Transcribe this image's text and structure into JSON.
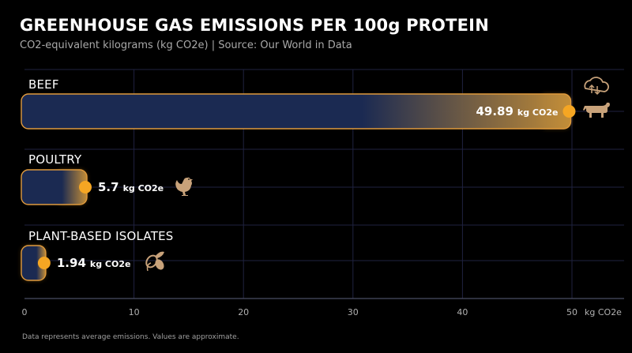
{
  "header": {
    "title": "GREENHOUSE GAS EMISSIONS PER 100g PROTEIN",
    "subtitle": "CO2-equivalent kilograms (kg CO2e) | Source: Our World in Data"
  },
  "footnote": "Data represents average emissions. Values are approximate.",
  "colors": {
    "bar_fill": "#1b2a52",
    "accent": "#f5a623",
    "icon": "#c8a27a",
    "grid": "#1f2240"
  },
  "chart_data": {
    "type": "bar",
    "orientation": "horizontal",
    "title": "GREENHOUSE GAS EMISSIONS PER 100g PROTEIN",
    "subtitle": "CO2-equivalent kilograms (kg CO2e) | Source: Our World in Data",
    "categories": [
      "BEEF",
      "POULTRY",
      "PLANT-BASED ISOLATES"
    ],
    "values": [
      49.89,
      5.7,
      1.94
    ],
    "value_labels": [
      "49.89",
      "5.7",
      "1.94"
    ],
    "value_unit": "kg CO2e",
    "icons": [
      "cloud-cow-icon",
      "chicken-icon",
      "soybean-icon"
    ],
    "xlabel": "kg CO2e",
    "xlim": [
      0,
      50
    ],
    "xticks": [
      0,
      10,
      20,
      30,
      40,
      50
    ],
    "grid": true
  }
}
